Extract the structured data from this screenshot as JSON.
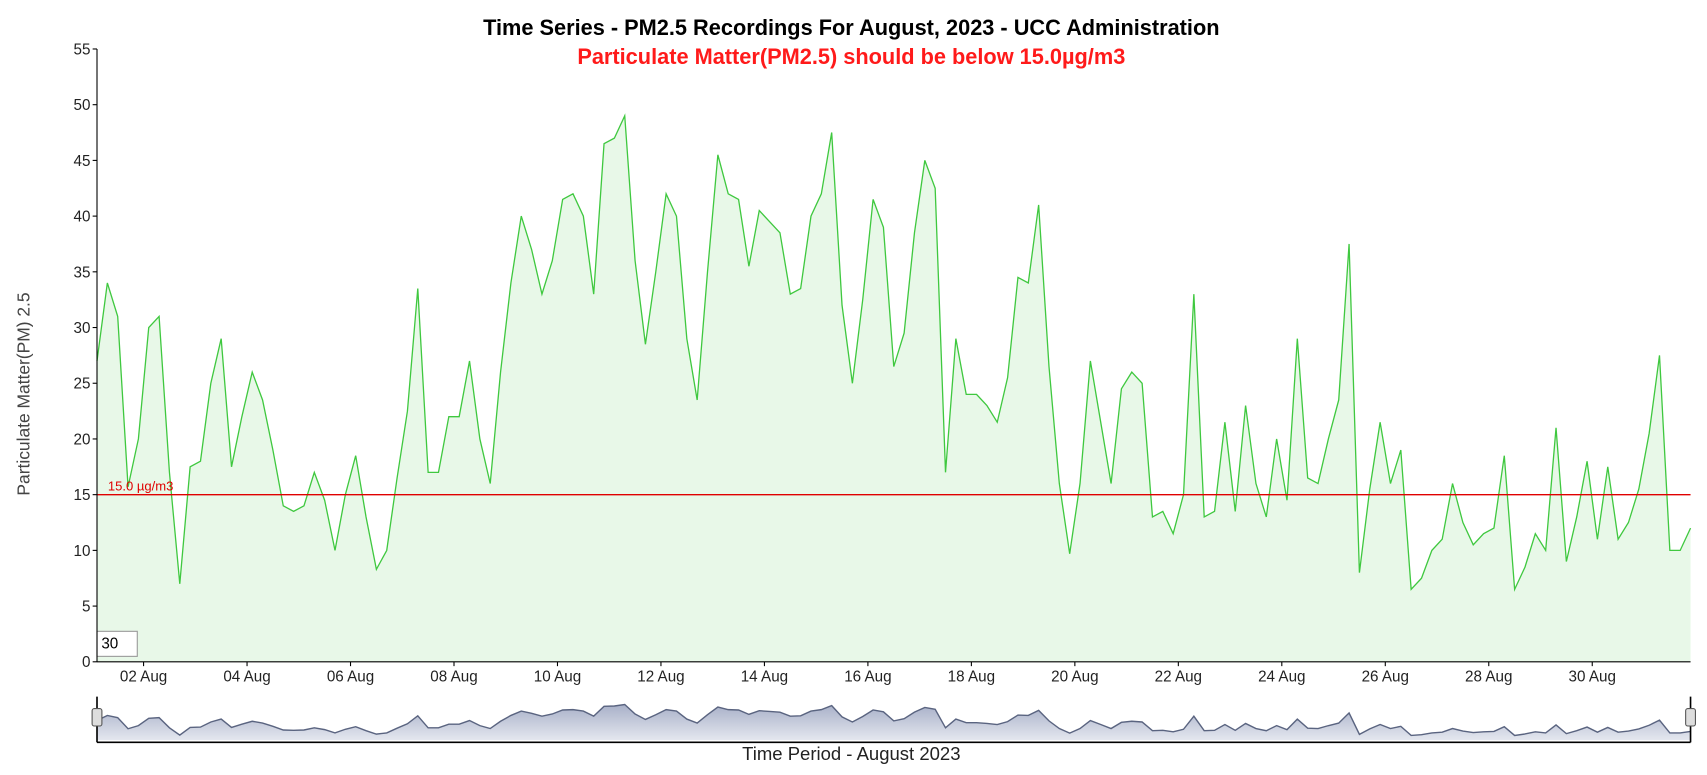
{
  "chart_data": {
    "type": "area",
    "title": "Time Series - PM2.5 Recordings For August, 2023 - UCC Administration",
    "subtitle": "Particulate Matter(PM2.5) should be below 15.0µg/m3",
    "y_label": "Particulate Matter(PM) 2.5",
    "x_label": "Time Period - August 2023",
    "roll_period": 30,
    "threshold": {
      "value": 15,
      "label": "15.0 µg/m3",
      "color": "#e00000"
    },
    "x": [
      1.1,
      1.3,
      1.5,
      1.7,
      1.9,
      2.1,
      2.3,
      2.5,
      2.7,
      2.9,
      3.1,
      3.3,
      3.5,
      3.7,
      3.9,
      4.1,
      4.3,
      4.5,
      4.7,
      4.9,
      5.1,
      5.3,
      5.5,
      5.7,
      5.9,
      6.1,
      6.3,
      6.5,
      6.7,
      6.9,
      7.1,
      7.3,
      7.5,
      7.7,
      7.9,
      8.1,
      8.3,
      8.5,
      8.7,
      8.9,
      9.1,
      9.3,
      9.5,
      9.7,
      9.9,
      10.1,
      10.3,
      10.5,
      10.7,
      10.9,
      11.1,
      11.3,
      11.5,
      11.7,
      11.9,
      12.1,
      12.3,
      12.5,
      12.7,
      12.9,
      13.1,
      13.3,
      13.5,
      13.7,
      13.9,
      14.1,
      14.3,
      14.5,
      14.7,
      14.9,
      15.1,
      15.3,
      15.5,
      15.7,
      15.9,
      16.1,
      16.3,
      16.5,
      16.7,
      16.9,
      17.1,
      17.3,
      17.5,
      17.7,
      17.9,
      18.1,
      18.3,
      18.5,
      18.7,
      18.9,
      19.1,
      19.3,
      19.5,
      19.7,
      19.9,
      20.1,
      20.3,
      20.5,
      20.7,
      20.9,
      21.1,
      21.3,
      21.5,
      21.7,
      21.9,
      22.1,
      22.3,
      22.5,
      22.7,
      22.9,
      23.1,
      23.3,
      23.5,
      23.7,
      23.9,
      24.1,
      24.3,
      24.5,
      24.7,
      24.9,
      25.1,
      25.3,
      25.5,
      25.7,
      25.9,
      26.1,
      26.3,
      26.5,
      26.7,
      26.9,
      27.1,
      27.3,
      27.5,
      27.7,
      27.9,
      28.1,
      28.3,
      28.5,
      28.7,
      28.9,
      29.1,
      29.3,
      29.5,
      29.7,
      29.9,
      30.1,
      30.3,
      30.5,
      30.7,
      30.9,
      31.1,
      31.3,
      31.5,
      31.7,
      31.9
    ],
    "series": [
      {
        "name": "PM2.5",
        "color": "#3fc83f",
        "values": [
          27,
          34,
          31,
          15.7,
          20,
          30,
          31,
          17,
          7,
          17.5,
          18,
          25,
          29,
          17.5,
          22,
          26,
          23.5,
          19,
          14,
          13.5,
          14,
          17,
          14.5,
          10,
          15,
          18.5,
          13,
          8.3,
          10,
          16.5,
          22.5,
          33.5,
          17,
          17,
          22,
          22,
          27,
          20,
          16,
          26,
          34,
          40,
          37,
          33,
          36,
          41.5,
          42,
          40,
          33,
          46.5,
          47,
          49,
          36,
          28.5,
          35,
          42,
          40,
          29,
          23.5,
          35,
          45.5,
          42,
          41.5,
          35.5,
          40.5,
          39.5,
          38.5,
          33,
          33.5,
          40,
          42,
          47.5,
          32,
          25,
          32.5,
          41.5,
          39,
          26.5,
          29.5,
          38.5,
          45,
          42.5,
          17,
          29,
          24,
          24,
          23,
          21.5,
          25.5,
          34.5,
          34,
          41,
          26.5,
          16,
          9.7,
          16,
          27,
          21.5,
          16,
          24.5,
          26,
          25,
          13,
          13.5,
          11.5,
          15,
          33,
          13,
          13.5,
          21.5,
          13.5,
          23,
          16,
          13,
          20,
          14.5,
          29,
          16.5,
          16,
          20,
          23.5,
          37.5,
          8,
          15.5,
          21.5,
          16,
          19,
          6.5,
          7.5,
          10,
          11,
          16,
          12.5,
          10.5,
          11.5,
          12,
          18.5,
          6.5,
          8.5,
          11.5,
          10,
          21,
          9,
          13,
          18,
          11,
          17.5,
          11,
          12.5,
          15.5,
          20.5,
          27.5,
          10,
          10,
          12
        ]
      }
    ],
    "xlim": [
      1.1,
      31.9
    ],
    "xticks": [
      {
        "value": 2,
        "label": "02 Aug"
      },
      {
        "value": 4,
        "label": "04 Aug"
      },
      {
        "value": 6,
        "label": "06 Aug"
      },
      {
        "value": 8,
        "label": "08 Aug"
      },
      {
        "value": 10,
        "label": "10 Aug"
      },
      {
        "value": 12,
        "label": "12 Aug"
      },
      {
        "value": 14,
        "label": "14 Aug"
      },
      {
        "value": 16,
        "label": "16 Aug"
      },
      {
        "value": 18,
        "label": "18 Aug"
      },
      {
        "value": 20,
        "label": "20 Aug"
      },
      {
        "value": 22,
        "label": "22 Aug"
      },
      {
        "value": 24,
        "label": "24 Aug"
      },
      {
        "value": 26,
        "label": "26 Aug"
      },
      {
        "value": 28,
        "label": "28 Aug"
      },
      {
        "value": 30,
        "label": "30 Aug"
      }
    ],
    "ylim": [
      0,
      55
    ],
    "yticks": [
      0,
      5,
      10,
      15,
      20,
      25,
      30,
      35,
      40,
      45,
      50,
      55
    ],
    "grid": false
  }
}
